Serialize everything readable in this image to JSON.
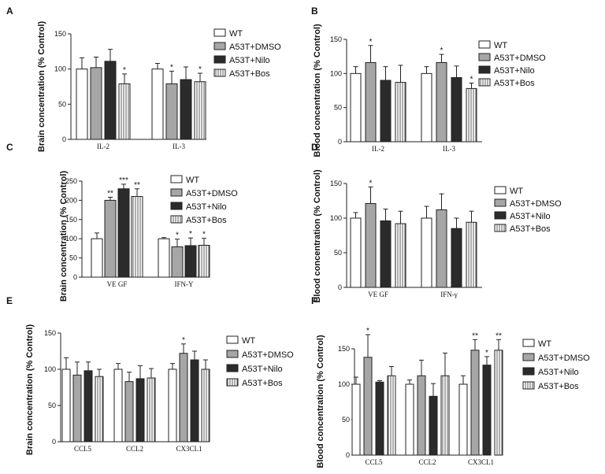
{
  "legend_labels": [
    "WT",
    "A53T+DMSO",
    "A53T+Nilo",
    "A53T+Bos"
  ],
  "colors": {
    "wt": "#ffffff",
    "dmso": "#a6a6a6",
    "nilo": "#2b2b2b",
    "bos": "#ffffff",
    "axis": "#222222"
  },
  "chart_data": [
    {
      "type": "bar",
      "panel": "A",
      "ylabel": "Brain concentration (% Control)",
      "categories": [
        "IL-2",
        "IL-3"
      ],
      "ylim": [
        0,
        150
      ],
      "yticks": [
        0,
        50,
        100,
        150
      ],
      "series": [
        {
          "name": "WT",
          "values": [
            100,
            100
          ],
          "errors": [
            16,
            8
          ]
        },
        {
          "name": "A53T+DMSO",
          "values": [
            102,
            79
          ],
          "errors": [
            15,
            18
          ]
        },
        {
          "name": "A53T+Nilo",
          "values": [
            111,
            85
          ],
          "errors": [
            17,
            18
          ]
        },
        {
          "name": "A53T+Bos",
          "values": [
            79,
            82
          ],
          "errors": [
            14,
            12
          ]
        }
      ],
      "annotations": [
        [
          "",
          ""
        ],
        [
          "",
          "*"
        ],
        [
          "",
          ""
        ],
        [
          "*",
          "*"
        ]
      ]
    },
    {
      "type": "bar",
      "panel": "B",
      "ylabel": "Blood concentration (% Control)",
      "categories": [
        "IL-2",
        "IL-3"
      ],
      "ylim": [
        0,
        150
      ],
      "yticks": [
        0,
        50,
        100,
        150
      ],
      "series": [
        {
          "name": "WT",
          "values": [
            100,
            100
          ],
          "errors": [
            10,
            10
          ]
        },
        {
          "name": "A53T+DMSO",
          "values": [
            116,
            116
          ],
          "errors": [
            25,
            12
          ]
        },
        {
          "name": "A53T+Nilo",
          "values": [
            90,
            94
          ],
          "errors": [
            20,
            17
          ]
        },
        {
          "name": "A53T+Bos",
          "values": [
            87,
            78
          ],
          "errors": [
            25,
            8
          ]
        }
      ],
      "annotations": [
        [
          "",
          ""
        ],
        [
          "*",
          "*"
        ],
        [
          "",
          ""
        ],
        [
          "",
          "*"
        ]
      ]
    },
    {
      "type": "bar",
      "panel": "C",
      "ylabel": "Brain concentration (% Control)",
      "categories": [
        "VE GF",
        "IFN-Y"
      ],
      "ylim": [
        0,
        250
      ],
      "yticks": [
        0,
        50,
        100,
        150,
        200,
        250
      ],
      "series": [
        {
          "name": "WT",
          "values": [
            100,
            100
          ],
          "errors": [
            15,
            3
          ]
        },
        {
          "name": "A53T+DMSO",
          "values": [
            200,
            79
          ],
          "errors": [
            8,
            20
          ]
        },
        {
          "name": "A53T+Nilo",
          "values": [
            230,
            82
          ],
          "errors": [
            12,
            20
          ]
        },
        {
          "name": "A53T+Bos",
          "values": [
            210,
            83
          ],
          "errors": [
            20,
            18
          ]
        }
      ],
      "annotations": [
        [
          "",
          ""
        ],
        [
          "**",
          "*"
        ],
        [
          "***",
          "*"
        ],
        [
          "**",
          "*"
        ]
      ]
    },
    {
      "type": "bar",
      "panel": "D",
      "ylabel": "Blood concentration (% Control)",
      "categories": [
        "VE GF",
        "IFN-γ"
      ],
      "ylim": [
        0,
        150
      ],
      "yticks": [
        0,
        50,
        100,
        150
      ],
      "series": [
        {
          "name": "WT",
          "values": [
            100,
            100
          ],
          "errors": [
            8,
            17
          ]
        },
        {
          "name": "A53T+DMSO",
          "values": [
            121,
            112
          ],
          "errors": [
            24,
            23
          ]
        },
        {
          "name": "A53T+Nilo",
          "values": [
            96,
            85
          ],
          "errors": [
            17,
            15
          ]
        },
        {
          "name": "A53T+Bos",
          "values": [
            92,
            94
          ],
          "errors": [
            18,
            16
          ]
        }
      ],
      "annotations": [
        [
          "",
          ""
        ],
        [
          "*",
          ""
        ],
        [
          "",
          ""
        ],
        [
          "",
          ""
        ]
      ]
    },
    {
      "type": "bar",
      "panel": "E",
      "ylabel": "Brain concentration (% Control)",
      "categories": [
        "CCL5",
        "CCL2",
        "CX3CL1"
      ],
      "ylim": [
        0,
        150
      ],
      "yticks": [
        0,
        50,
        100,
        150
      ],
      "series": [
        {
          "name": "WT",
          "values": [
            100,
            100,
            100
          ],
          "errors": [
            16,
            8,
            8
          ]
        },
        {
          "name": "A53T+DMSO",
          "values": [
            92,
            83,
            122
          ],
          "errors": [
            18,
            13,
            13
          ]
        },
        {
          "name": "A53T+Nilo",
          "values": [
            98,
            87,
            113
          ],
          "errors": [
            12,
            18,
            12
          ]
        },
        {
          "name": "A53T+Bos",
          "values": [
            90,
            88,
            100
          ],
          "errors": [
            10,
            13,
            13
          ]
        }
      ],
      "annotations": [
        [
          "",
          "",
          ""
        ],
        [
          "",
          "",
          "*"
        ],
        [
          "",
          "",
          ""
        ],
        [
          "",
          "",
          ""
        ]
      ]
    },
    {
      "type": "bar",
      "panel": "F",
      "ylabel": "Blood concentration (% Control)",
      "categories": [
        "CCL5",
        "CCL2",
        "CX3CL1"
      ],
      "ylim": [
        0,
        150
      ],
      "yticks": [
        0,
        50,
        100,
        150
      ],
      "series": [
        {
          "name": "WT",
          "values": [
            100,
            100,
            100
          ],
          "errors": [
            10,
            6,
            12
          ]
        },
        {
          "name": "A53T+DMSO",
          "values": [
            138,
            112,
            148
          ],
          "errors": [
            32,
            22,
            15
          ]
        },
        {
          "name": "A53T+Nilo",
          "values": [
            103,
            83,
            127
          ],
          "errors": [
            2,
            18,
            12
          ]
        },
        {
          "name": "A53T+Bos",
          "values": [
            112,
            112,
            148
          ],
          "errors": [
            13,
            32,
            15
          ]
        }
      ],
      "annotations": [
        [
          "",
          "",
          ""
        ],
        [
          "*",
          "",
          "**"
        ],
        [
          "",
          "",
          "*"
        ],
        [
          "",
          "",
          "**"
        ]
      ]
    }
  ]
}
